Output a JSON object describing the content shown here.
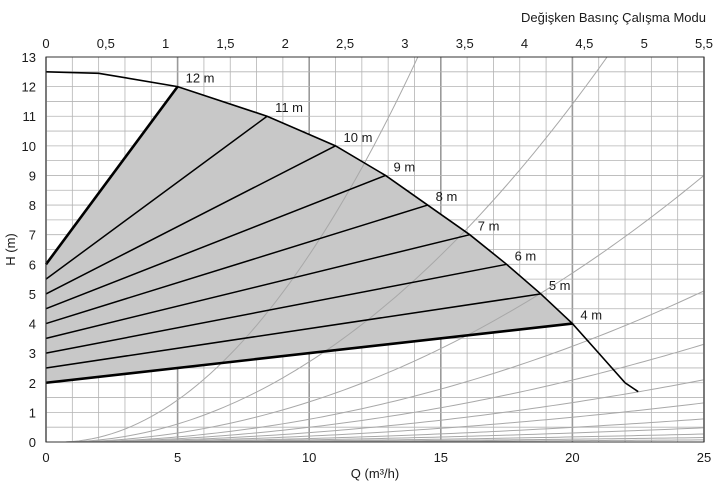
{
  "chart_data": {
    "type": "line",
    "top_title": "Değişken Basınç Çalışma Modu",
    "xlabel": "Q (m³/h)",
    "ylabel": "H (m)",
    "xlim": [
      0,
      25
    ],
    "ylim": [
      0,
      13
    ],
    "x2lim": [
      0,
      5.5
    ],
    "x_ticks": [
      "0",
      "5",
      "10",
      "15",
      "20",
      "25"
    ],
    "y_ticks": [
      "0",
      "1",
      "2",
      "3",
      "4",
      "5",
      "6",
      "7",
      "8",
      "9",
      "10",
      "11",
      "12",
      "13"
    ],
    "x2_ticks": [
      "0",
      "0,5",
      "1",
      "1,5",
      "2",
      "2,5",
      "3",
      "3,5",
      "4",
      "4,5",
      "5",
      "5,5"
    ],
    "grid": true,
    "max_curve": {
      "points": [
        [
          0,
          12.5
        ],
        [
          2,
          12.45
        ],
        [
          5,
          12.0
        ],
        [
          8.4,
          11.0
        ],
        [
          11.0,
          10.0
        ],
        [
          12.9,
          9.0
        ],
        [
          14.5,
          8.0
        ],
        [
          16.1,
          7.0
        ],
        [
          17.5,
          6.0
        ],
        [
          18.8,
          5.0
        ],
        [
          20.0,
          4.0
        ],
        [
          21.0,
          3.0
        ],
        [
          22.0,
          2.0
        ],
        [
          22.5,
          1.7
        ]
      ]
    },
    "pressure_lines": [
      {
        "label": "12 m",
        "h0": 6.0,
        "q_end": 5.0,
        "h_end": 12.0
      },
      {
        "label": "11 m",
        "h0": 5.5,
        "q_end": 8.4,
        "h_end": 11.0
      },
      {
        "label": "10 m",
        "h0": 5.0,
        "q_end": 11.0,
        "h_end": 10.0
      },
      {
        "label": "9 m",
        "h0": 4.5,
        "q_end": 12.9,
        "h_end": 9.0
      },
      {
        "label": "8 m",
        "h0": 4.0,
        "q_end": 14.5,
        "h_end": 8.0
      },
      {
        "label": "7 m",
        "h0": 3.5,
        "q_end": 16.1,
        "h_end": 7.0
      },
      {
        "label": "6 m",
        "h0": 3.0,
        "q_end": 17.5,
        "h_end": 6.0
      },
      {
        "label": "5 m",
        "h0": 2.5,
        "q_end": 18.8,
        "h_end": 5.0
      },
      {
        "label": "4 m",
        "h0": 2.0,
        "q_end": 20.0,
        "h_end": 4.0
      }
    ],
    "system_curve_k": [
      0.07,
      0.03,
      0.015,
      0.0085,
      0.0055,
      0.0035,
      0.0022,
      0.0013,
      0.0008,
      0.00045,
      0.00025,
      0.00012
    ],
    "colors": {
      "fill": "#c8c8c8",
      "grid": "#b4b4b4",
      "grid_major": "#9a9a9a",
      "line": "#000000",
      "system_curve": "#a8a8a8"
    }
  }
}
